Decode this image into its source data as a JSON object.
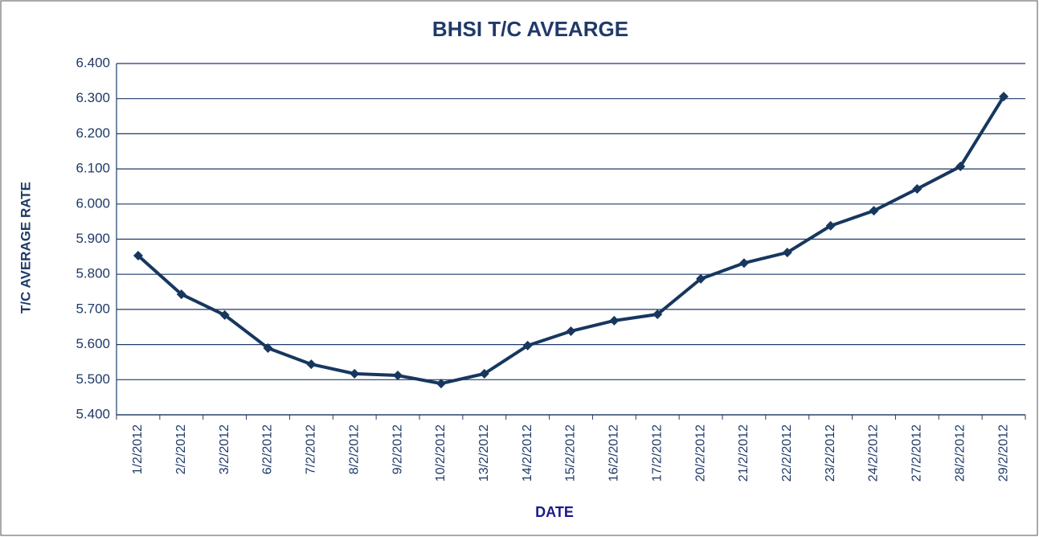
{
  "chart_data": {
    "type": "line",
    "title": "BHSI T/C AVEARGE",
    "y_label": "T/C AVERAGE  RATE",
    "x_label": "DATE",
    "categories": [
      "1/2/2012",
      "2/2/2012",
      "3/2/2012",
      "6/2/2012",
      "7/2/2012",
      "8/2/2012",
      "9/2/2012",
      "10/2/2012",
      "13/2/2012",
      "14/2/2012",
      "15/2/2012",
      "16/2/2012",
      "17/2/2012",
      "20/2/2012",
      "21/2/2012",
      "22/2/2012",
      "23/2/2012",
      "24/2/2012",
      "27/2/2012",
      "28/2/2012",
      "29/2/2012"
    ],
    "series": [
      {
        "name": "BHSI T/C average",
        "color": "#17375e",
        "values": [
          5853,
          5743,
          5684,
          5590,
          5544,
          5517,
          5512,
          5489,
          5517,
          5597,
          5638,
          5668,
          5686,
          5787,
          5832,
          5862,
          5938,
          5981,
          6043,
          6107,
          6306
        ]
      }
    ],
    "ylim": [
      5400,
      6400
    ],
    "yticks": [
      {
        "value": 5400,
        "label": "5.400"
      },
      {
        "value": 5500,
        "label": "5.500"
      },
      {
        "value": 5600,
        "label": "5.600"
      },
      {
        "value": 5700,
        "label": "5.700"
      },
      {
        "value": 5800,
        "label": "5.800"
      },
      {
        "value": 5900,
        "label": "5.900"
      },
      {
        "value": 6000,
        "label": "6.000"
      },
      {
        "value": 6100,
        "label": "6.100"
      },
      {
        "value": 6200,
        "label": "6.200"
      },
      {
        "value": 6300,
        "label": "6.300"
      },
      {
        "value": 6400,
        "label": "6.400"
      }
    ],
    "grid": true
  }
}
